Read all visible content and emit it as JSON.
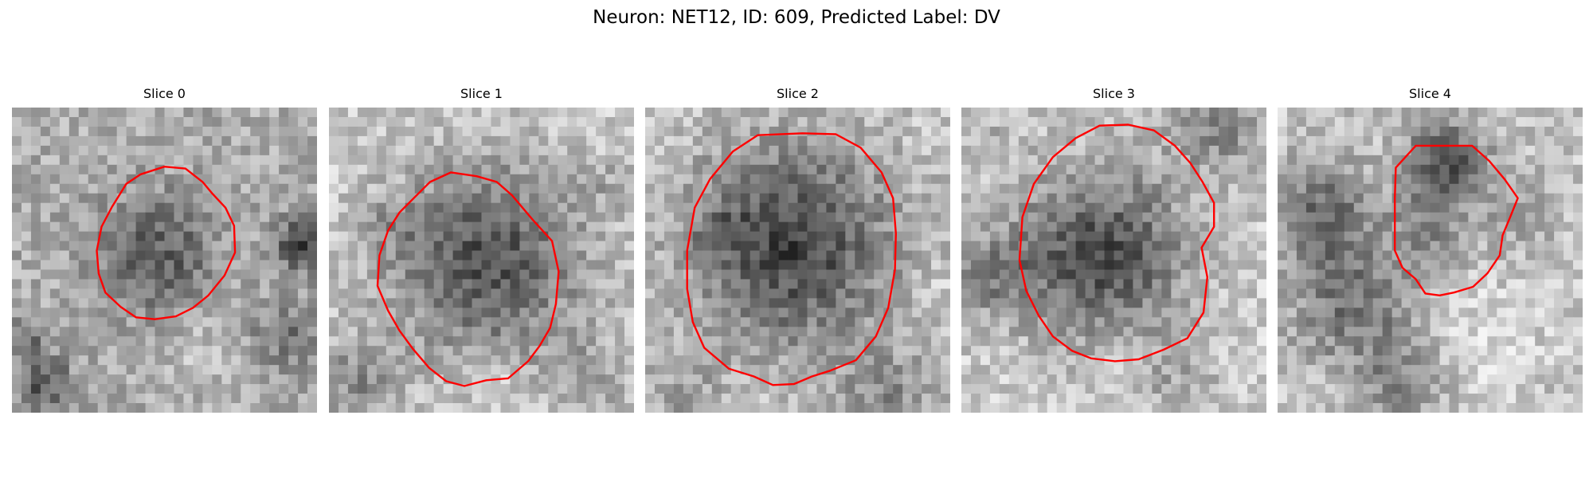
{
  "figure": {
    "title": "Neuron: NET12, ID: 609, Predicted Label: DV"
  },
  "colors": {
    "contour": "#ff0000",
    "background": "#ffffff"
  },
  "panels": [
    {
      "title": "Slice 0"
    },
    {
      "title": "Slice 1"
    },
    {
      "title": "Slice 2"
    },
    {
      "title": "Slice 3"
    },
    {
      "title": "Slice 4"
    }
  ]
}
